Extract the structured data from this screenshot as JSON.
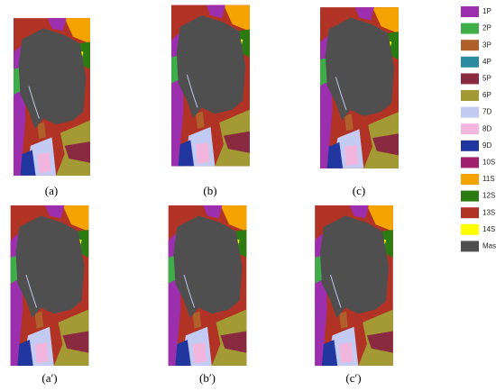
{
  "panels": [
    {
      "label": "(a)"
    },
    {
      "label": "(b)"
    },
    {
      "label": "(c)"
    },
    {
      "label": "(a′)"
    },
    {
      "label": "(b′)"
    },
    {
      "label": "(c′)"
    }
  ],
  "legend": [
    {
      "label": "1P",
      "color": "#9b2fae"
    },
    {
      "label": "2P",
      "color": "#3fae49"
    },
    {
      "label": "3P",
      "color": "#b0602a"
    },
    {
      "label": "4P",
      "color": "#2e8ca0"
    },
    {
      "label": "5P",
      "color": "#8a2a40"
    },
    {
      "label": "6P",
      "color": "#a39a35"
    },
    {
      "label": "7D",
      "color": "#c3cbf2"
    },
    {
      "label": "8D",
      "color": "#f2b6de"
    },
    {
      "label": "9D",
      "color": "#2236a0"
    },
    {
      "label": "10S",
      "color": "#a0226e"
    },
    {
      "label": "11S",
      "color": "#f5a300"
    },
    {
      "label": "12S",
      "color": "#2b7a12"
    },
    {
      "label": "13S",
      "color": "#b13326"
    },
    {
      "label": "14S",
      "color": "#ffff00"
    },
    {
      "label": "Mask",
      "color": "#4f4f4f"
    }
  ]
}
